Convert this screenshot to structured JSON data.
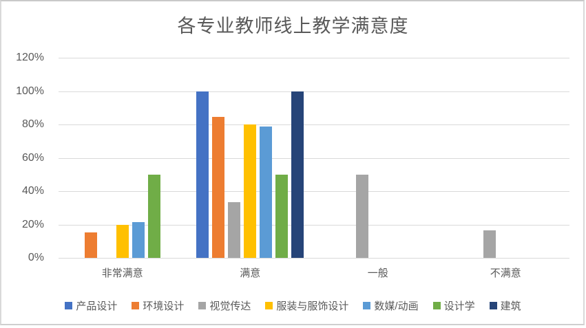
{
  "chart_data": {
    "type": "bar",
    "title": "各专业教师线上教学满意度",
    "categories": [
      "非常满意",
      "满意",
      "一般",
      "不满意"
    ],
    "series": [
      {
        "name": "产品设计",
        "color": "#4472C4",
        "values": [
          0,
          100,
          0,
          0
        ]
      },
      {
        "name": "环境设计",
        "color": "#ED7D31",
        "values": [
          15.4,
          84.6,
          0,
          0
        ]
      },
      {
        "name": "视觉传达",
        "color": "#A5A5A5",
        "values": [
          0,
          33.3,
          50,
          16.7
        ]
      },
      {
        "name": "服装与服饰设计",
        "color": "#FFC000",
        "values": [
          20,
          80,
          0,
          0
        ]
      },
      {
        "name": "数媒/动画",
        "color": "#5B9BD5",
        "values": [
          21.4,
          78.6,
          0,
          0
        ]
      },
      {
        "name": "设计学",
        "color": "#70AD47",
        "values": [
          50,
          50,
          0,
          0
        ]
      },
      {
        "name": "建筑",
        "color": "#264478",
        "values": [
          0,
          100,
          0,
          0
        ]
      }
    ],
    "y_ticks": [
      "0%",
      "20%",
      "40%",
      "60%",
      "80%",
      "100%",
      "120%"
    ],
    "ylim": [
      0,
      120
    ],
    "grid": true,
    "legend_position": "bottom",
    "xlabel": "",
    "ylabel": ""
  },
  "style": {
    "text_color": "#595959",
    "gridline_color": "#d9d9d9",
    "frame_border_color": "#d9d9d9",
    "background": "#ffffff"
  }
}
